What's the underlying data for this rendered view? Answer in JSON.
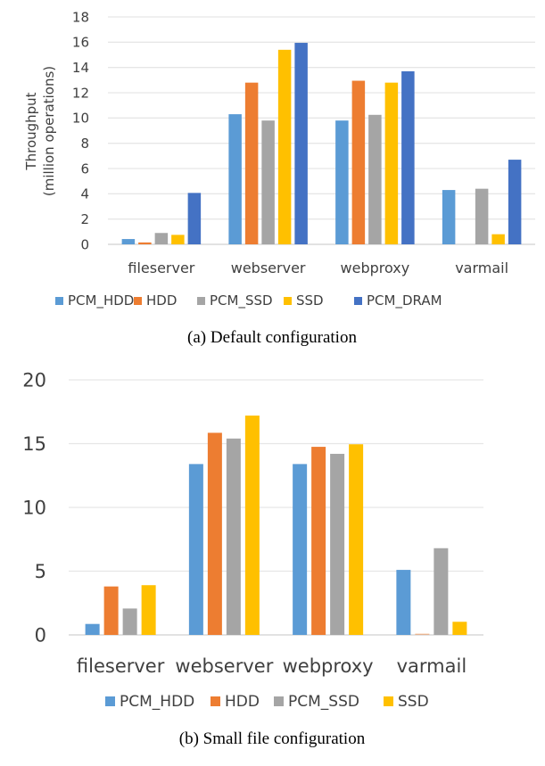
{
  "chart_data": [
    {
      "type": "bar",
      "caption": "(a) Default configuration",
      "ylabel": "Throughput",
      "ylabel2": "(million operations)",
      "ylim": [
        0,
        18
      ],
      "yticks": [
        0,
        2,
        4,
        6,
        8,
        10,
        12,
        14,
        16,
        18
      ],
      "grid": true,
      "legend": "bottom",
      "categories": [
        "fileserver",
        "webserver",
        "webproxy",
        "varmail"
      ],
      "series": [
        {
          "name": "PCM_HDD",
          "color": "#5b9bd5",
          "values": [
            0.42,
            10.3,
            9.8,
            4.3
          ]
        },
        {
          "name": "HDD",
          "color": "#ed7d31",
          "values": [
            0.15,
            12.8,
            12.95,
            0
          ]
        },
        {
          "name": "PCM_SSD",
          "color": "#a5a5a5",
          "values": [
            0.9,
            9.8,
            10.25,
            4.4
          ]
        },
        {
          "name": "SSD",
          "color": "#ffc000",
          "values": [
            0.75,
            15.4,
            12.8,
            0.8
          ]
        },
        {
          "name": "PCM_DRAM",
          "color": "#4472c4",
          "values": [
            4.07,
            15.95,
            13.7,
            6.7
          ]
        }
      ]
    },
    {
      "type": "bar",
      "caption": "(b) Small file configuration",
      "ylim": [
        0,
        20
      ],
      "yticks": [
        0,
        5,
        10,
        15,
        20
      ],
      "grid": true,
      "legend": "bottom",
      "categories": [
        "fileserver",
        "webserver",
        "webproxy",
        "varmail"
      ],
      "series": [
        {
          "name": "PCM_HDD",
          "color": "#5b9bd5",
          "values": [
            0.86,
            13.4,
            13.4,
            5.1
          ]
        },
        {
          "name": "HDD",
          "color": "#ed7d31",
          "values": [
            3.8,
            15.85,
            14.75,
            0.1
          ]
        },
        {
          "name": "PCM_SSD",
          "color": "#a5a5a5",
          "values": [
            2.07,
            15.4,
            14.2,
            6.8
          ]
        },
        {
          "name": "SSD",
          "color": "#ffc000",
          "values": [
            3.9,
            17.2,
            14.95,
            1.03
          ]
        }
      ]
    }
  ]
}
